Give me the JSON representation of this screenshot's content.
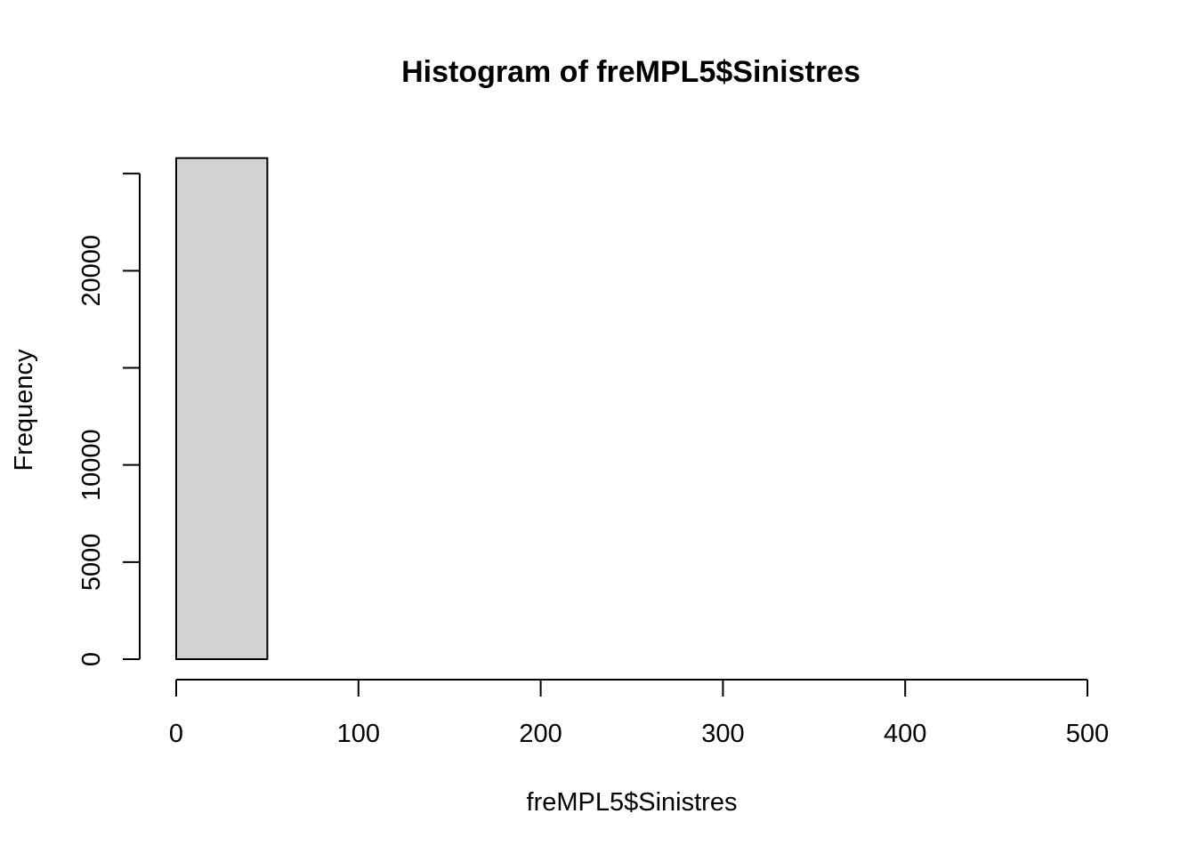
{
  "chart_data": {
    "type": "bar",
    "title": "Histogram of freMPL5$Sinistres",
    "xlabel": "freMPL5$Sinistres",
    "ylabel": "Frequency",
    "xlim": [
      0,
      500
    ],
    "ylim": [
      0,
      25800
    ],
    "x_ticks": [
      0,
      100,
      200,
      300,
      400,
      500
    ],
    "x_tick_labels": [
      "0",
      "100",
      "200",
      "300",
      "400",
      "500"
    ],
    "y_ticks": [
      0,
      5000,
      10000,
      15000,
      20000,
      25000
    ],
    "y_tick_labels": [
      "0",
      "5000",
      "10000",
      "",
      "20000",
      ""
    ],
    "bins": [
      {
        "x0": 0,
        "x1": 50,
        "count": 25800
      },
      {
        "x0": 50,
        "x1": 100,
        "count": 0
      },
      {
        "x0": 100,
        "x1": 150,
        "count": 0
      },
      {
        "x0": 150,
        "x1": 200,
        "count": 0
      },
      {
        "x0": 200,
        "x1": 250,
        "count": 0
      },
      {
        "x0": 250,
        "x1": 300,
        "count": 0
      },
      {
        "x0": 300,
        "x1": 350,
        "count": 0
      },
      {
        "x0": 350,
        "x1": 400,
        "count": 0
      },
      {
        "x0": 400,
        "x1": 450,
        "count": 0
      },
      {
        "x0": 450,
        "x1": 500,
        "count": 0
      }
    ],
    "bar_fill": "#d3d3d3",
    "grid": false
  }
}
